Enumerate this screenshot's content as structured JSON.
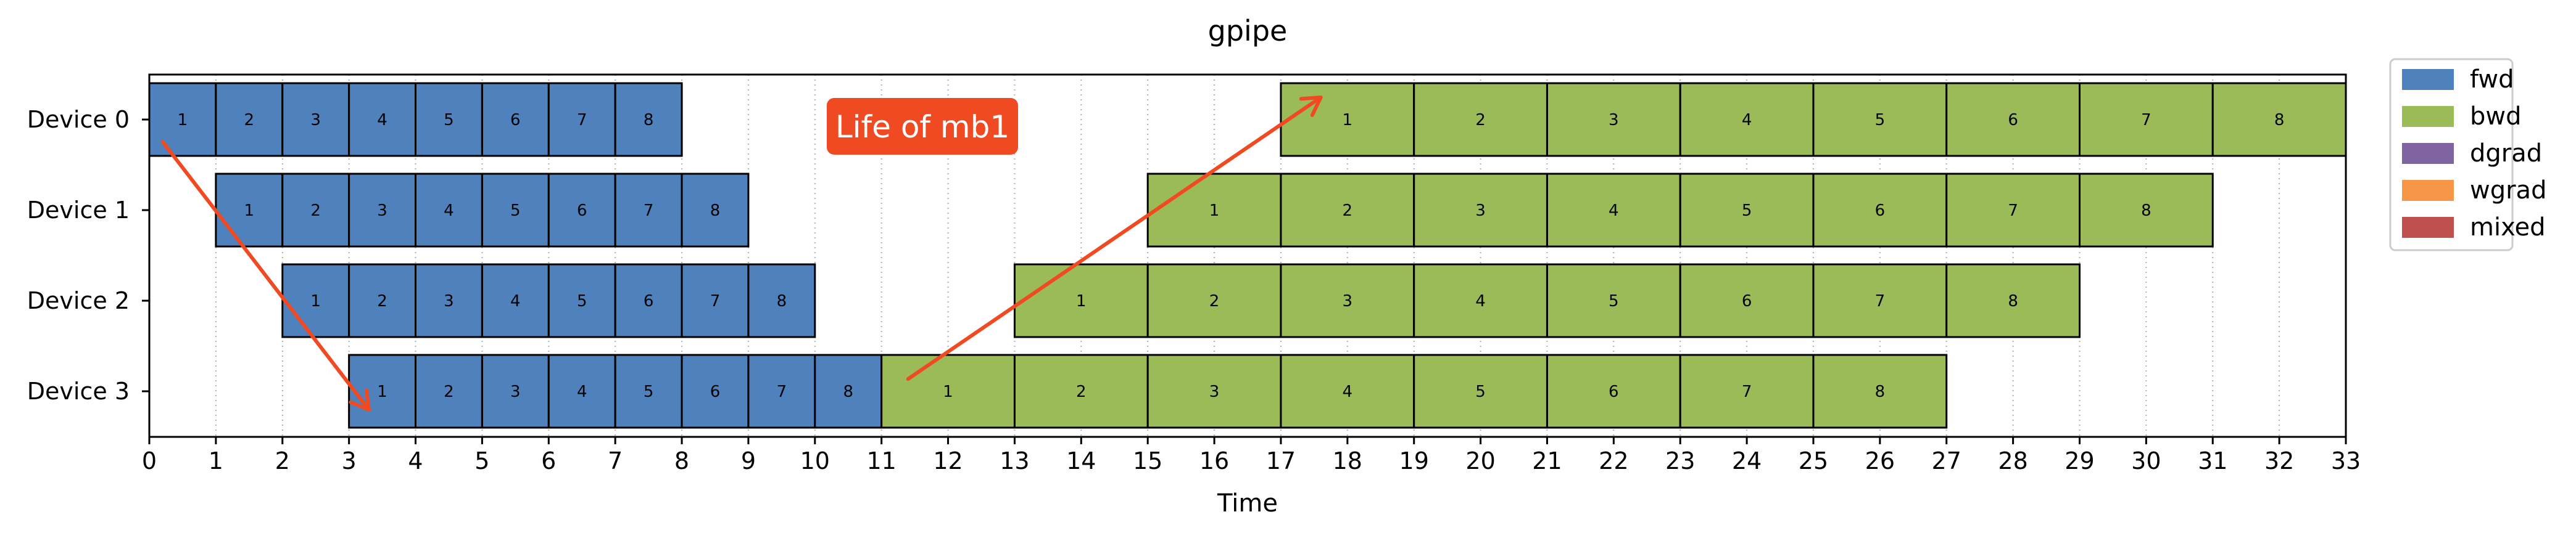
{
  "chart_data": {
    "type": "gantt",
    "title": "gpipe",
    "xlabel": "Time",
    "ylabel": "",
    "xlim": [
      0,
      33
    ],
    "xticks": [
      0,
      1,
      2,
      3,
      4,
      5,
      6,
      7,
      8,
      9,
      10,
      11,
      12,
      13,
      14,
      15,
      16,
      17,
      18,
      19,
      20,
      21,
      22,
      23,
      24,
      25,
      26,
      27,
      28,
      29,
      30,
      31,
      32,
      33
    ],
    "grid": "x-dotted",
    "rows": [
      "Device 0",
      "Device 1",
      "Device 2",
      "Device 3"
    ],
    "legend": {
      "placement": "outside-top-right",
      "entries": [
        {
          "name": "fwd",
          "color": "#4f81bd"
        },
        {
          "name": "bwd",
          "color": "#9bbb59"
        },
        {
          "name": "dgrad",
          "color": "#8064a2"
        },
        {
          "name": "wgrad",
          "color": "#f79646"
        },
        {
          "name": "mixed",
          "color": "#c0504d"
        }
      ]
    },
    "series": [
      {
        "name": "fwd",
        "color": "#4f81bd",
        "duration": 1,
        "items": [
          {
            "row": 0,
            "starts": [
              0,
              1,
              2,
              3,
              4,
              5,
              6,
              7
            ],
            "labels": [
              "1",
              "2",
              "3",
              "4",
              "5",
              "6",
              "7",
              "8"
            ]
          },
          {
            "row": 1,
            "starts": [
              1,
              2,
              3,
              4,
              5,
              6,
              7,
              8
            ],
            "labels": [
              "1",
              "2",
              "3",
              "4",
              "5",
              "6",
              "7",
              "8"
            ]
          },
          {
            "row": 2,
            "starts": [
              2,
              3,
              4,
              5,
              6,
              7,
              8,
              9
            ],
            "labels": [
              "1",
              "2",
              "3",
              "4",
              "5",
              "6",
              "7",
              "8"
            ]
          },
          {
            "row": 3,
            "starts": [
              3,
              4,
              5,
              6,
              7,
              8,
              9,
              10
            ],
            "labels": [
              "1",
              "2",
              "3",
              "4",
              "5",
              "6",
              "7",
              "8"
            ]
          }
        ]
      },
      {
        "name": "bwd",
        "color": "#9bbb59",
        "duration": 2,
        "items": [
          {
            "row": 0,
            "starts": [
              17,
              19,
              21,
              23,
              25,
              27,
              29,
              31
            ],
            "labels": [
              "1",
              "2",
              "3",
              "4",
              "5",
              "6",
              "7",
              "8"
            ]
          },
          {
            "row": 1,
            "starts": [
              15,
              17,
              19,
              21,
              23,
              25,
              27,
              29
            ],
            "labels": [
              "1",
              "2",
              "3",
              "4",
              "5",
              "6",
              "7",
              "8"
            ]
          },
          {
            "row": 2,
            "starts": [
              13,
              15,
              17,
              19,
              21,
              23,
              25,
              27
            ],
            "labels": [
              "1",
              "2",
              "3",
              "4",
              "5",
              "6",
              "7",
              "8"
            ]
          },
          {
            "row": 3,
            "starts": [
              11,
              13,
              15,
              17,
              19,
              21,
              23,
              25
            ],
            "labels": [
              "1",
              "2",
              "3",
              "4",
              "5",
              "6",
              "7",
              "8"
            ]
          }
        ]
      }
    ],
    "annotation": {
      "text": "Life of mb1",
      "color": "#f04a23",
      "arrows": [
        {
          "from": [
            0.2,
            0
          ],
          "to": [
            3.3,
            3
          ]
        },
        {
          "from": [
            11.4,
            3
          ],
          "to": [
            17.6,
            0
          ]
        }
      ]
    }
  }
}
